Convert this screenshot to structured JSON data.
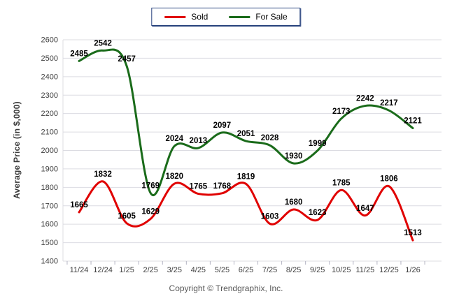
{
  "footer": {
    "copyright": "Copyright © Trendgraphix, Inc."
  },
  "chart_data": {
    "type": "line",
    "title": "",
    "xlabel": "",
    "ylabel": "Average Price (in $,000)",
    "ylim": [
      1400,
      2600
    ],
    "ytick_step": 100,
    "grid": true,
    "legend_position": "top",
    "categories": [
      "11/24",
      "12/24",
      "1/25",
      "2/25",
      "3/25",
      "4/25",
      "5/25",
      "6/25",
      "7/25",
      "8/25",
      "9/25",
      "10/25",
      "11/25",
      "12/25",
      "1/26"
    ],
    "series": [
      {
        "name": "Sold",
        "color": "#e00000",
        "values": [
          1665,
          1832,
          1605,
          1629,
          1820,
          1765,
          1768,
          1819,
          1603,
          1680,
          1623,
          1785,
          1647,
          1806,
          1513
        ]
      },
      {
        "name": "For Sale",
        "color": "#1a6b1a",
        "values": [
          2485,
          2542,
          2457,
          1769,
          2024,
          2013,
          2097,
          2051,
          2028,
          1930,
          1999,
          2173,
          2242,
          2217,
          2121
        ]
      }
    ]
  }
}
